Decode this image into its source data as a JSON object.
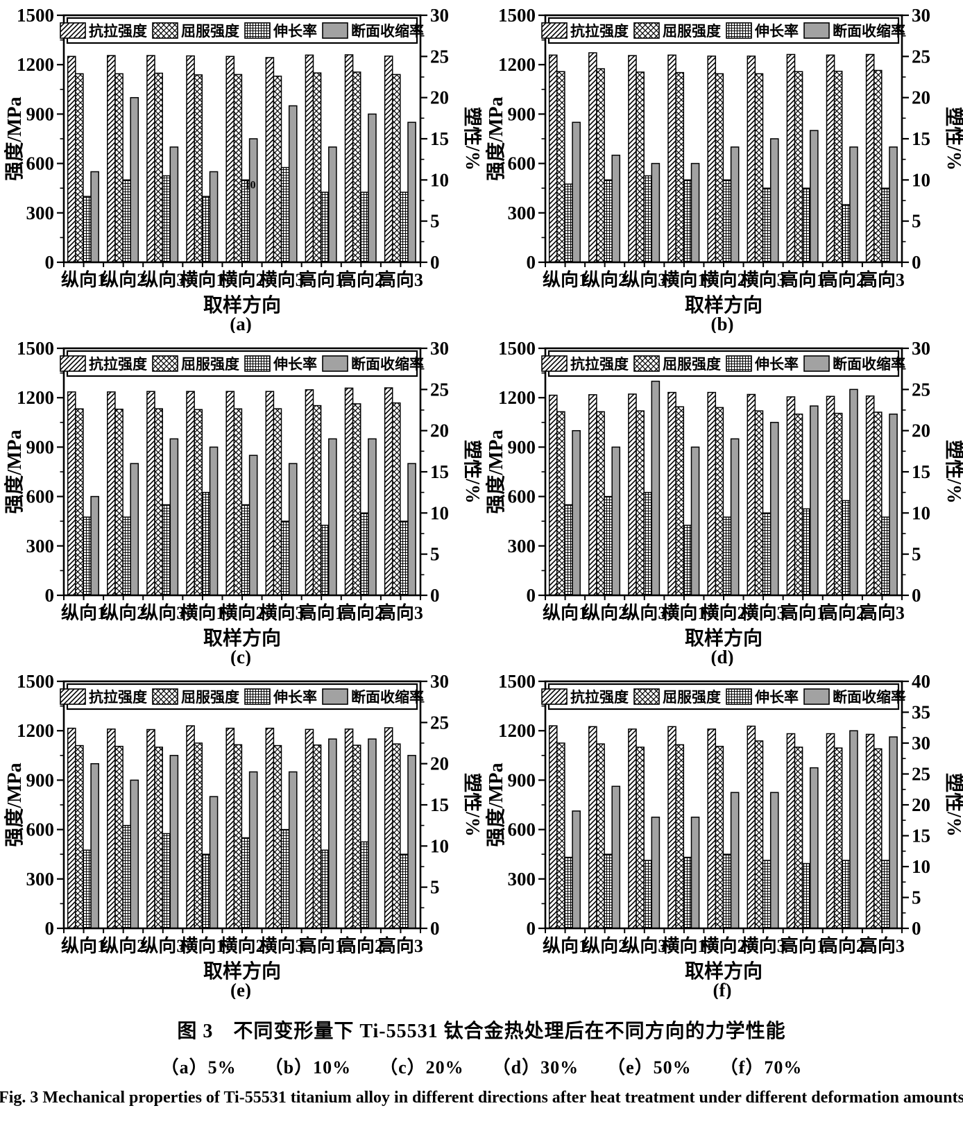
{
  "figure": {
    "caption_cn": "图 3　不同变形量下 Ti-55531 钛合金热处理后在不同方向的力学性能",
    "caption_sub": "（a）5%　　（b）10%　　（c）20%　　（d）30%　　（e）50%　　（f）70%",
    "caption_en": "Fig. 3   Mechanical properties of Ti-55531 titanium alloy in different directions after heat treatment under different deformation amounts"
  },
  "axes": {
    "left_label": "强度/MPa",
    "right_label": "塑性/%",
    "x_label": "取样方向",
    "left_max": 1500,
    "left_major_step": 300,
    "left_minor_step": 150
  },
  "legend": [
    {
      "label": "抗拉强度",
      "pattern": "diag"
    },
    {
      "label": "屈服强度",
      "pattern": "cross"
    },
    {
      "label": "伸长率",
      "pattern": "grid"
    },
    {
      "label": "断面收缩率",
      "pattern": "solid"
    }
  ],
  "colors": {
    "ink": "#000000",
    "bar_gray": "#a2a2a2",
    "bg": "#ffffff"
  },
  "chart_data": [
    {
      "id": "a",
      "panel": "(a)",
      "deformation": "5%",
      "type": "bar",
      "categories": [
        "纵向1",
        "纵向2",
        "纵向3",
        "横向1",
        "横向2",
        "横向3",
        "高向1",
        "高向2",
        "高向3"
      ],
      "left_axis": {
        "max": 1500,
        "major_step": 300,
        "minor_step": 150
      },
      "right_axis": {
        "max": 30,
        "major_step": 5,
        "minor_step": 2.5
      },
      "series": [
        {
          "name": "抗拉强度",
          "axis": "left",
          "unit": "MPa",
          "values": [
            1250,
            1255,
            1255,
            1253,
            1250,
            1243,
            1258,
            1260,
            1252
          ]
        },
        {
          "name": "屈服强度",
          "axis": "left",
          "unit": "MPa",
          "values": [
            1145,
            1145,
            1148,
            1138,
            1140,
            1130,
            1150,
            1155,
            1140
          ]
        },
        {
          "name": "伸长率",
          "axis": "right",
          "unit": "%",
          "values": [
            8,
            10,
            10.5,
            8,
            10,
            11.5,
            8.5,
            8.5,
            8.5
          ]
        },
        {
          "name": "断面收缩率",
          "axis": "right",
          "unit": "%",
          "values": [
            11,
            20,
            14,
            11,
            15,
            19,
            14,
            18,
            17
          ]
        }
      ],
      "annotation": {
        "text": "10",
        "category_index": 4,
        "series_index": 2
      }
    },
    {
      "id": "b",
      "panel": "(b)",
      "deformation": "10%",
      "type": "bar",
      "categories": [
        "纵向1",
        "纵向2",
        "纵向3",
        "横向1",
        "横向2",
        "横向3",
        "高向1",
        "高向2",
        "高向3"
      ],
      "left_axis": {
        "max": 1500,
        "major_step": 300,
        "minor_step": 150
      },
      "right_axis": {
        "max": 30,
        "major_step": 5,
        "minor_step": 2.5
      },
      "series": [
        {
          "name": "抗拉强度",
          "axis": "left",
          "unit": "MPa",
          "values": [
            1258,
            1272,
            1255,
            1258,
            1252,
            1252,
            1262,
            1258,
            1262
          ]
        },
        {
          "name": "屈服强度",
          "axis": "left",
          "unit": "MPa",
          "values": [
            1158,
            1175,
            1155,
            1152,
            1145,
            1145,
            1158,
            1160,
            1165
          ]
        },
        {
          "name": "伸长率",
          "axis": "right",
          "unit": "%",
          "values": [
            9.5,
            10,
            10.5,
            10,
            10,
            9,
            9,
            7,
            9
          ]
        },
        {
          "name": "断面收缩率",
          "axis": "right",
          "unit": "%",
          "values": [
            17,
            13,
            12,
            12,
            14,
            15,
            16,
            14,
            14
          ]
        }
      ]
    },
    {
      "id": "c",
      "panel": "(c)",
      "deformation": "20%",
      "type": "bar",
      "categories": [
        "纵向1",
        "纵向2",
        "纵向3",
        "横向1",
        "横向2",
        "横向3",
        "高向1",
        "高向2",
        "高向3"
      ],
      "left_axis": {
        "max": 1500,
        "major_step": 300,
        "minor_step": 150
      },
      "right_axis": {
        "max": 30,
        "major_step": 5,
        "minor_step": 2.5
      },
      "series": [
        {
          "name": "抗拉强度",
          "axis": "left",
          "unit": "MPa",
          "values": [
            1235,
            1235,
            1238,
            1238,
            1238,
            1238,
            1248,
            1258,
            1260
          ]
        },
        {
          "name": "屈服强度",
          "axis": "left",
          "unit": "MPa",
          "values": [
            1132,
            1130,
            1133,
            1128,
            1132,
            1133,
            1152,
            1163,
            1168
          ]
        },
        {
          "name": "伸长率",
          "axis": "right",
          "unit": "%",
          "values": [
            9.5,
            9.5,
            11,
            12.5,
            11,
            9,
            8.5,
            10,
            9
          ]
        },
        {
          "name": "断面收缩率",
          "axis": "right",
          "unit": "%",
          "values": [
            12,
            16,
            19,
            18,
            17,
            16,
            19,
            19,
            16
          ]
        }
      ]
    },
    {
      "id": "d",
      "panel": "(d)",
      "deformation": "30%",
      "type": "bar",
      "categories": [
        "纵向1",
        "纵向2",
        "纵向3",
        "横向1",
        "横向2",
        "横向3",
        "高向1",
        "高向2",
        "高向3"
      ],
      "left_axis": {
        "max": 1500,
        "major_step": 300,
        "minor_step": 150
      },
      "right_axis": {
        "max": 30,
        "major_step": 5,
        "minor_step": 2.5
      },
      "series": [
        {
          "name": "抗拉强度",
          "axis": "left",
          "unit": "MPa",
          "values": [
            1215,
            1218,
            1222,
            1232,
            1232,
            1220,
            1205,
            1208,
            1210
          ]
        },
        {
          "name": "屈服强度",
          "axis": "left",
          "unit": "MPa",
          "values": [
            1115,
            1115,
            1120,
            1145,
            1140,
            1120,
            1100,
            1105,
            1112
          ]
        },
        {
          "name": "伸长率",
          "axis": "right",
          "unit": "%",
          "values": [
            11,
            12,
            12.5,
            8.5,
            9.5,
            10,
            10.5,
            11.5,
            9.5
          ]
        },
        {
          "name": "断面收缩率",
          "axis": "right",
          "unit": "%",
          "values": [
            20,
            18,
            26,
            18,
            19,
            21,
            23,
            25,
            22
          ]
        }
      ]
    },
    {
      "id": "e",
      "panel": "(e)",
      "deformation": "50%",
      "type": "bar",
      "categories": [
        "纵向1",
        "纵向2",
        "纵向3",
        "横向1",
        "横向2",
        "横向3",
        "高向1",
        "高向2",
        "高向3"
      ],
      "left_axis": {
        "max": 1500,
        "major_step": 300,
        "minor_step": 150
      },
      "right_axis": {
        "max": 30,
        "major_step": 5,
        "minor_step": 2.5
      },
      "series": [
        {
          "name": "抗拉强度",
          "axis": "left",
          "unit": "MPa",
          "values": [
            1215,
            1210,
            1207,
            1230,
            1215,
            1215,
            1208,
            1210,
            1218
          ]
        },
        {
          "name": "屈服强度",
          "axis": "left",
          "unit": "MPa",
          "values": [
            1110,
            1105,
            1100,
            1125,
            1115,
            1110,
            1113,
            1112,
            1120
          ]
        },
        {
          "name": "伸长率",
          "axis": "right",
          "unit": "%",
          "values": [
            9.5,
            12.5,
            11.5,
            9,
            11,
            12,
            9.5,
            10.5,
            9
          ]
        },
        {
          "name": "断面收缩率",
          "axis": "right",
          "unit": "%",
          "values": [
            20,
            18,
            21,
            16,
            19,
            19,
            23,
            23,
            21
          ]
        }
      ]
    },
    {
      "id": "f",
      "panel": "(f)",
      "deformation": "70%",
      "type": "bar",
      "categories": [
        "纵向1",
        "纵向2",
        "纵向3",
        "横向1",
        "横向2",
        "横向3",
        "高向1",
        "高向2",
        "高向3"
      ],
      "left_axis": {
        "max": 1500,
        "major_step": 300,
        "minor_step": 150
      },
      "right_axis": {
        "max": 40,
        "major_step": 5,
        "minor_step": 2.5
      },
      "series": [
        {
          "name": "抗拉强度",
          "axis": "left",
          "unit": "MPa",
          "values": [
            1230,
            1225,
            1210,
            1225,
            1210,
            1228,
            1182,
            1182,
            1178
          ]
        },
        {
          "name": "屈服强度",
          "axis": "left",
          "unit": "MPa",
          "values": [
            1125,
            1120,
            1100,
            1115,
            1105,
            1138,
            1100,
            1095,
            1090
          ]
        },
        {
          "name": "伸长率",
          "axis": "right",
          "unit": "%",
          "values": [
            11.5,
            12,
            11,
            11.5,
            12,
            11,
            10.5,
            11,
            11
          ]
        },
        {
          "name": "断面收缩率",
          "axis": "right",
          "unit": "%",
          "values": [
            19,
            23,
            18,
            18,
            22,
            22,
            26,
            32,
            31
          ]
        }
      ]
    }
  ]
}
